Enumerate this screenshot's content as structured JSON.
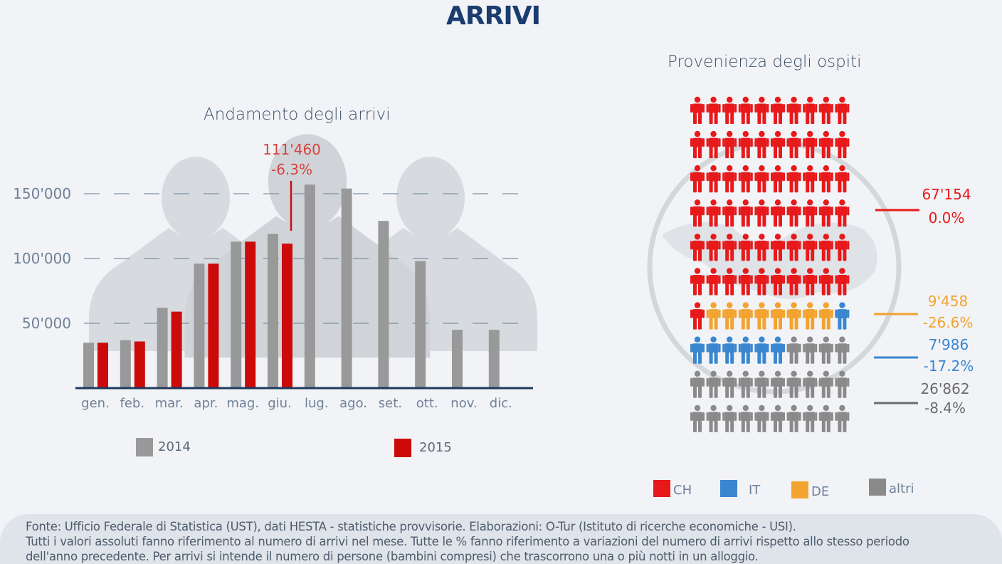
{
  "title": "ARRIVI",
  "colors": {
    "navy": "#1a3c6e",
    "gray_bar": "#999999",
    "red_bar": "#cc0a0a",
    "ch": "#e8191b",
    "it": "#3a86d0",
    "de": "#f2a330",
    "altri": "#8a8a8a",
    "axis": "#1f3a5f"
  },
  "chart_data": [
    {
      "type": "bar",
      "title": "Andamento degli arrivi",
      "categories": [
        "gen.",
        "feb.",
        "mar.",
        "apr.",
        "mag.",
        "giu.",
        "lug.",
        "ago.",
        "set.",
        "ott.",
        "nov.",
        "dic."
      ],
      "series": [
        {
          "name": "2014",
          "values": [
            35000,
            37000,
            62000,
            96000,
            113000,
            119000,
            157000,
            154000,
            129000,
            98000,
            45000,
            45000
          ]
        },
        {
          "name": "2015",
          "values": [
            35000,
            36000,
            59000,
            96000,
            113000,
            111460,
            null,
            null,
            null,
            null,
            null,
            null
          ]
        }
      ],
      "yticks": [
        50000,
        100000,
        150000
      ],
      "ytick_labels": [
        "50'000",
        "100'000",
        "150'000"
      ],
      "ylim": [
        0,
        160000
      ],
      "grid": true,
      "legend_position": "bottom",
      "annotation": {
        "category": "giu.",
        "value_label": "111'460",
        "change_label": "-6.3%"
      }
    },
    {
      "type": "pictogram",
      "title": "Provenienza degli ospiti",
      "total_icons": 100,
      "segments": [
        {
          "name": "CH",
          "icons": 61,
          "value_label": "67'154",
          "change_label": "0.0%"
        },
        {
          "name": "DE",
          "icons": 8,
          "value_label": "9'458",
          "change_label": "-26.6%"
        },
        {
          "name": "IT",
          "icons": 7,
          "value_label": "7'986",
          "change_label": "-17.2%"
        },
        {
          "name": "altri",
          "icons": 24,
          "value_label": "26'862",
          "change_label": "-8.4%"
        }
      ],
      "legend": [
        "CH",
        "IT",
        "DE",
        "altri"
      ],
      "legend_position": "bottom"
    }
  ],
  "source": {
    "line1": "Fonte: Ufficio Federale di Statistica (UST), dati HESTA - statistiche provvisorie. Elaborazioni: O-Tur (Istituto di ricerche economiche - USI).",
    "line2": "Tutti i valori assoluti fanno riferimento al numero di arrivi nel mese. Tutte le % fanno riferimento a variazioni del numero di arrivi rispetto allo stesso periodo",
    "line3": "dell'anno precedente. Per arrivi si intende il numero di persone (bambini compresi) che trascorrono una o più notti in un alloggio."
  }
}
